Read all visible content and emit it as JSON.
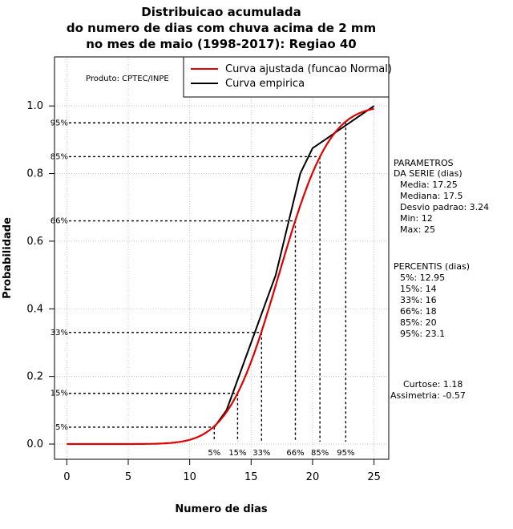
{
  "chart_data": {
    "type": "line",
    "title": [
      "Distribuicao acumulada",
      "do numero de dias com chuva acima de 2 mm",
      "no mes de maio (1998-2017): Regiao 40"
    ],
    "xlabel": "Numero de dias",
    "ylabel": "Probabilidade",
    "xlim": [
      -1,
      26.2
    ],
    "ylim": [
      -0.045,
      1.145
    ],
    "x_ticks": [
      0,
      5,
      10,
      15,
      20,
      25
    ],
    "y_ticks": [
      0.0,
      0.2,
      0.4,
      0.6,
      0.8,
      1.0
    ],
    "x_tick_labels": [
      "0",
      "5",
      "10",
      "15",
      "20",
      "25"
    ],
    "y_tick_labels": [
      "0.0",
      "0.2",
      "0.4",
      "0.6",
      "0.8",
      "1.0"
    ],
    "grid": true,
    "producer": "Produto: CPTEC/INPE",
    "legend": {
      "position": "top-right",
      "entries": [
        {
          "label": "Curva ajustada (funcao Normal)",
          "color": "#e00000"
        },
        {
          "label": "Curva empirica",
          "color": "#000000"
        }
      ]
    },
    "normal_fit": {
      "mean": 17.25,
      "sd": 3.24,
      "x_min": 0,
      "x_max": 25,
      "color": "#e00000"
    },
    "series": [
      {
        "name": "Curva empirica",
        "color": "#000000",
        "x": [
          12,
          13,
          14,
          15,
          16,
          17,
          18,
          19,
          20,
          21,
          22,
          23,
          24,
          25
        ],
        "y": [
          0.05,
          0.1,
          0.2,
          0.3,
          0.4,
          0.5,
          0.65,
          0.8,
          0.875,
          0.9,
          0.925,
          0.95,
          0.975,
          1.0
        ]
      }
    ],
    "percentile_lines": [
      {
        "label": "5%",
        "p": 0.05,
        "x": 12.0
      },
      {
        "label": "15%",
        "p": 0.15,
        "x": 13.9
      },
      {
        "label": "33%",
        "p": 0.33,
        "x": 15.85
      },
      {
        "label": "66%",
        "p": 0.66,
        "x": 18.6
      },
      {
        "label": "85%",
        "p": 0.85,
        "x": 20.6
      },
      {
        "label": "95%",
        "p": 0.95,
        "x": 22.7
      }
    ],
    "parameters": {
      "header": [
        "PARAMETROS",
        "DA SERIE (dias)"
      ],
      "lines": [
        "Media: 17.25",
        "Mediana: 17.5",
        "Desvio padrao: 3.24",
        "Min: 12",
        "Max: 25"
      ]
    },
    "percentis": {
      "header": "PERCENTIS (dias)",
      "lines": [
        "5%: 12.95",
        "15%: 14",
        "33%: 16",
        "66%: 18",
        "85%: 20",
        "95%: 23.1"
      ]
    },
    "shape": {
      "lines": [
        "Curtose: 1.18",
        "Assimetria: -0.57"
      ]
    }
  }
}
